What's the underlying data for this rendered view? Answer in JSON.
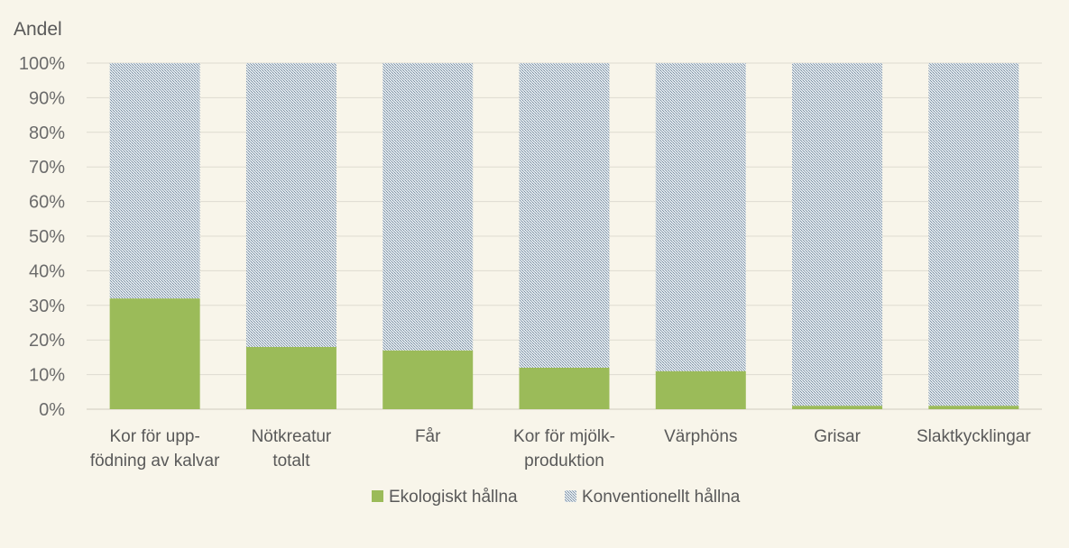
{
  "chart_data": {
    "type": "bar",
    "stacked": true,
    "ylabel": "Andel",
    "ylim": [
      0,
      100
    ],
    "yticks": [
      "0%",
      "10%",
      "20%",
      "30%",
      "40%",
      "50%",
      "60%",
      "70%",
      "80%",
      "90%",
      "100%"
    ],
    "categories": [
      [
        "Kor för upp-",
        "födning av kalvar"
      ],
      [
        "Nötkreatur",
        "totalt"
      ],
      [
        "Får"
      ],
      [
        "Kor för mjölk-",
        "produktion"
      ],
      [
        "Värphöns"
      ],
      [
        "Grisar"
      ],
      [
        "Slaktkycklingar"
      ]
    ],
    "series": [
      {
        "name": "Ekologiskt hållna",
        "values": [
          32,
          18,
          17,
          12,
          11,
          1,
          1
        ],
        "color": "#9bbb59"
      },
      {
        "name": "Konventionellt hållna",
        "values": [
          68,
          82,
          83,
          88,
          89,
          99,
          99
        ],
        "color": "#8fa3b3"
      }
    ],
    "grid": true,
    "legend_position": "bottom"
  }
}
